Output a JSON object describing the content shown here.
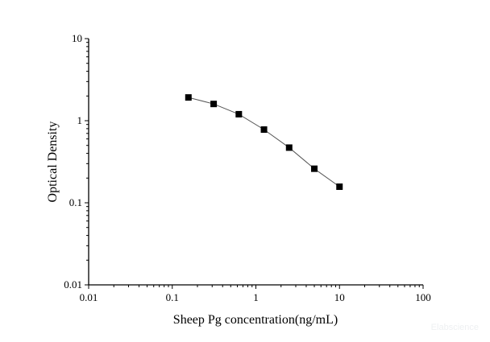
{
  "chart_data": {
    "type": "line",
    "title": "",
    "xlabel": "Sheep Pg concentration(ng/mL)",
    "ylabel": "Optical Density",
    "xscale": "log",
    "yscale": "log",
    "xlim": [
      0.01,
      100
    ],
    "ylim": [
      0.01,
      10
    ],
    "xticks": [
      "0.01",
      "0.1",
      "1",
      "10",
      "100"
    ],
    "yticks": [
      "0.01",
      "0.1",
      "1",
      "10"
    ],
    "grid": false,
    "marker": "square",
    "color": "#000000",
    "line_color": "#555555",
    "series": [
      {
        "x": [
          0.156,
          0.3125,
          0.625,
          1.25,
          2.5,
          5,
          10
        ],
        "y": [
          1.92,
          1.6,
          1.2,
          0.78,
          0.47,
          0.26,
          0.157
        ]
      }
    ]
  },
  "watermark": "Elabscience"
}
